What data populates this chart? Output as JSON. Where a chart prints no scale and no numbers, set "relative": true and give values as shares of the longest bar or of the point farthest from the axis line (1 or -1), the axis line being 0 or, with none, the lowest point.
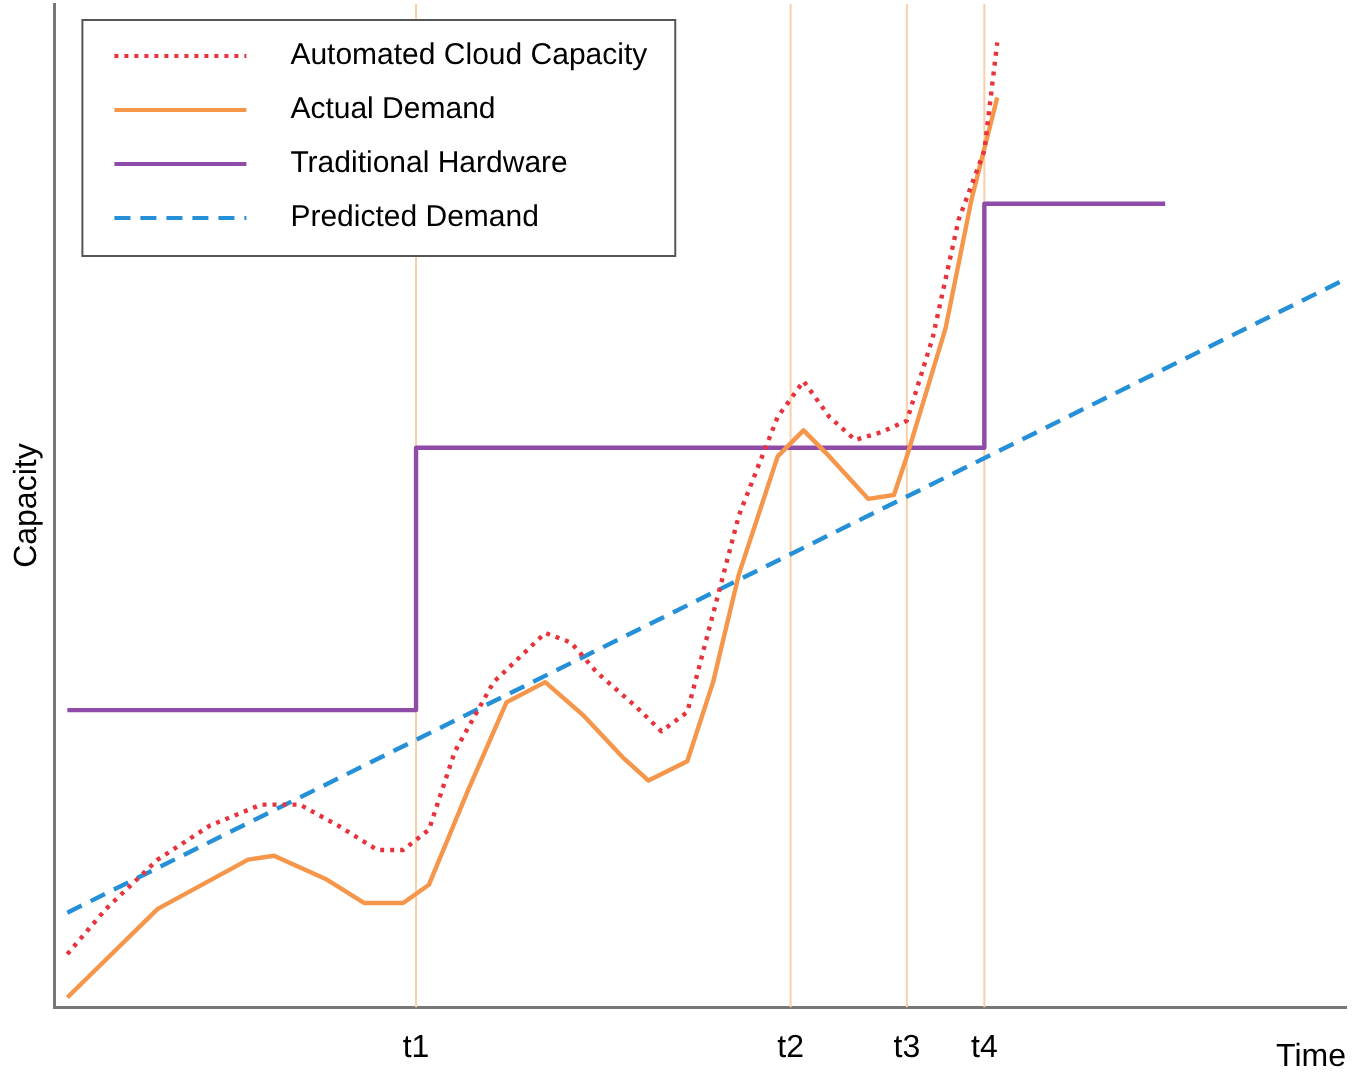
{
  "chart_data": {
    "type": "line",
    "relative": true,
    "xlabel": "Time",
    "ylabel": "Capacity",
    "categories": [
      null,
      null,
      null,
      null,
      null,
      null,
      null,
      null,
      null,
      null,
      null,
      null,
      null,
      null,
      null,
      null,
      null,
      null,
      null,
      null,
      null,
      null,
      null,
      null,
      null,
      null,
      null,
      null,
      "t1",
      null,
      null,
      null,
      null,
      null,
      null,
      null,
      null,
      null,
      null,
      null,
      null,
      null,
      null,
      null,
      null,
      null,
      null,
      null,
      null,
      null,
      null,
      null,
      null,
      null,
      null,
      null,
      null,
      "t2",
      null,
      null,
      null,
      null,
      null,
      null,
      null,
      null,
      "t3",
      null,
      null,
      null,
      null,
      null,
      "t4",
      null,
      null,
      null,
      null,
      null,
      null,
      null,
      null,
      null,
      null,
      null,
      null,
      null,
      null,
      null,
      null,
      null,
      null,
      null,
      null,
      null,
      null,
      null,
      null,
      null,
      null,
      null,
      null
    ],
    "grid": false,
    "legend": "top left",
    "marker": "none",
    "ref_lines": [
      {
        "axis": "x",
        "value": "t1",
        "color": "#f8cfa8"
      },
      {
        "axis": "x",
        "value": "t2",
        "color": "#f8cfa8"
      },
      {
        "axis": "x",
        "value": "t3",
        "color": "#f8cfa8"
      },
      {
        "axis": "x",
        "value": "t4",
        "color": "#f8cfa8"
      }
    ],
    "series": [
      {
        "name": "Automated Cloud Capacity",
        "type": "line",
        "line_style": "dotted",
        "color": "#e8323c",
        "values": [
          null,
          0.055,
          null,
          null,
          0.102,
          null,
          null,
          null,
          0.153,
          null,
          null,
          null,
          0.188,
          null,
          null,
          null,
          0.21,
          null,
          null,
          0.21,
          null,
          null,
          0.188,
          null,
          null,
          0.163,
          null,
          0.163,
          null,
          0.184,
          null,
          0.265,
          null,
          null,
          0.337,
          null,
          null,
          null,
          0.388,
          null,
          0.378,
          null,
          0.347,
          null,
          null,
          0.312,
          null,
          0.286,
          null,
          0.306,
          null,
          0.408,
          null,
          0.51,
          null,
          null,
          0.612,
          null,
          0.649,
          null,
          0.612,
          null,
          0.588,
          null,
          0.596,
          null,
          0.608,
          null,
          0.694,
          null,
          0.816,
          null,
          0.888,
          1,
          null,
          null,
          null,
          null,
          null,
          null,
          null,
          null,
          null,
          null,
          null,
          null,
          null,
          null,
          null,
          null,
          null,
          null,
          null,
          null,
          null,
          null,
          null,
          null,
          null,
          null,
          null
        ]
      },
      {
        "name": "Actual Demand",
        "type": "line",
        "line_style": "solid",
        "color": "#f5964a",
        "values": [
          null,
          0.01,
          null,
          null,
          null,
          null,
          null,
          null,
          0.102,
          null,
          null,
          null,
          null,
          null,
          null,
          0.153,
          null,
          0.157,
          null,
          null,
          null,
          0.133,
          null,
          null,
          0.108,
          null,
          null,
          0.108,
          null,
          0.127,
          null,
          null,
          0.224,
          null,
          null,
          0.316,
          null,
          null,
          0.337,
          null,
          null,
          0.302,
          null,
          null,
          0.259,
          null,
          0.235,
          null,
          null,
          0.255,
          null,
          0.337,
          null,
          0.449,
          null,
          null,
          0.571,
          null,
          0.598,
          null,
          0.571,
          null,
          null,
          0.527,
          null,
          0.531,
          0.571,
          null,
          null,
          0.704,
          null,
          0.837,
          null,
          0.943,
          null,
          null,
          null,
          null,
          null,
          null,
          null,
          null,
          null,
          null,
          null,
          null,
          null,
          null,
          null,
          null,
          null,
          null,
          null,
          null,
          null,
          null,
          null,
          null,
          null,
          null,
          null
        ]
      },
      {
        "name": "Traditional Hardware",
        "type": "step",
        "line_style": "solid",
        "color": "#8e4ba8",
        "values": [
          null,
          0.308,
          null,
          null,
          null,
          null,
          null,
          null,
          null,
          null,
          null,
          null,
          null,
          null,
          null,
          null,
          null,
          null,
          null,
          null,
          null,
          null,
          null,
          null,
          null,
          null,
          null,
          null,
          0.58,
          null,
          null,
          null,
          null,
          null,
          null,
          null,
          null,
          null,
          null,
          null,
          null,
          null,
          null,
          null,
          null,
          null,
          null,
          null,
          null,
          null,
          null,
          null,
          null,
          null,
          null,
          null,
          null,
          null,
          null,
          null,
          null,
          null,
          null,
          null,
          null,
          null,
          null,
          null,
          null,
          null,
          null,
          null,
          0.833,
          null,
          null,
          null,
          null,
          null,
          null,
          null,
          null,
          null,
          null,
          null,
          null,
          null,
          0.833,
          null,
          null,
          null,
          null,
          null,
          null,
          null,
          null,
          null,
          null,
          null,
          null,
          null,
          null
        ]
      },
      {
        "name": "Predicted Demand",
        "type": "line",
        "line_style": "dashed",
        "color": "#2590d8",
        "values": [
          null,
          0.098,
          null,
          null,
          null,
          null,
          null,
          null,
          null,
          null,
          null,
          null,
          null,
          null,
          null,
          null,
          null,
          null,
          null,
          null,
          null,
          null,
          null,
          null,
          null,
          null,
          null,
          null,
          null,
          null,
          null,
          null,
          null,
          null,
          null,
          null,
          null,
          null,
          null,
          null,
          null,
          null,
          null,
          null,
          null,
          null,
          null,
          null,
          null,
          null,
          null,
          null,
          null,
          null,
          null,
          null,
          null,
          null,
          null,
          null,
          null,
          null,
          null,
          null,
          null,
          null,
          null,
          null,
          null,
          null,
          null,
          null,
          null,
          null,
          null,
          null,
          null,
          null,
          null,
          null,
          null,
          null,
          null,
          null,
          null,
          null,
          null,
          null,
          null,
          null,
          null,
          null,
          null,
          null,
          null,
          null,
          null,
          null,
          null,
          null,
          0.755
        ]
      }
    ]
  }
}
